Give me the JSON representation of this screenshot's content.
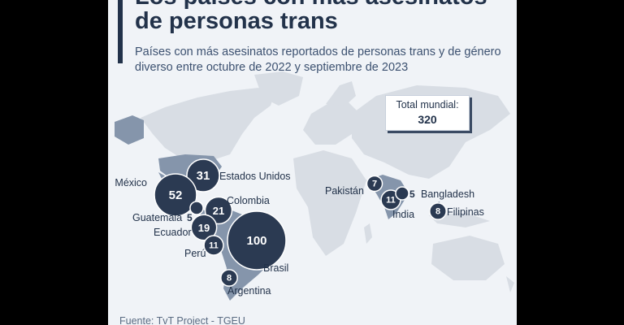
{
  "title_line1": "Los países con más asesinatos",
  "title_line2": "de personas trans",
  "subtitle": "Países con más asesinatos reportados de personas trans y de género diverso entre octubre de 2022 y septiembre de 2023",
  "total": {
    "label": "Total mundial:",
    "value": "320"
  },
  "source": "Fuente: TvT Project - TGEU",
  "colors": {
    "accent": "#22324a",
    "bubble": "#2b3a52",
    "land": "#d8dde4",
    "highlight": "#8595ab"
  },
  "chart_data": {
    "type": "bubble-map",
    "total": 320,
    "points": [
      {
        "country": "Estados Unidos",
        "value": 31
      },
      {
        "country": "México",
        "value": 52
      },
      {
        "country": "Colombia",
        "value": 21
      },
      {
        "country": "Guatemala",
        "value": 5
      },
      {
        "country": "Ecuador",
        "value": 19
      },
      {
        "country": "Perú",
        "value": 11
      },
      {
        "country": "Brasil",
        "value": 100
      },
      {
        "country": "Argentina",
        "value": 8
      },
      {
        "country": "Pakistán",
        "value": 7
      },
      {
        "country": "India",
        "value": 11
      },
      {
        "country": "Bangladesh",
        "value": 5
      },
      {
        "country": "Filipinas",
        "value": 8
      }
    ]
  }
}
